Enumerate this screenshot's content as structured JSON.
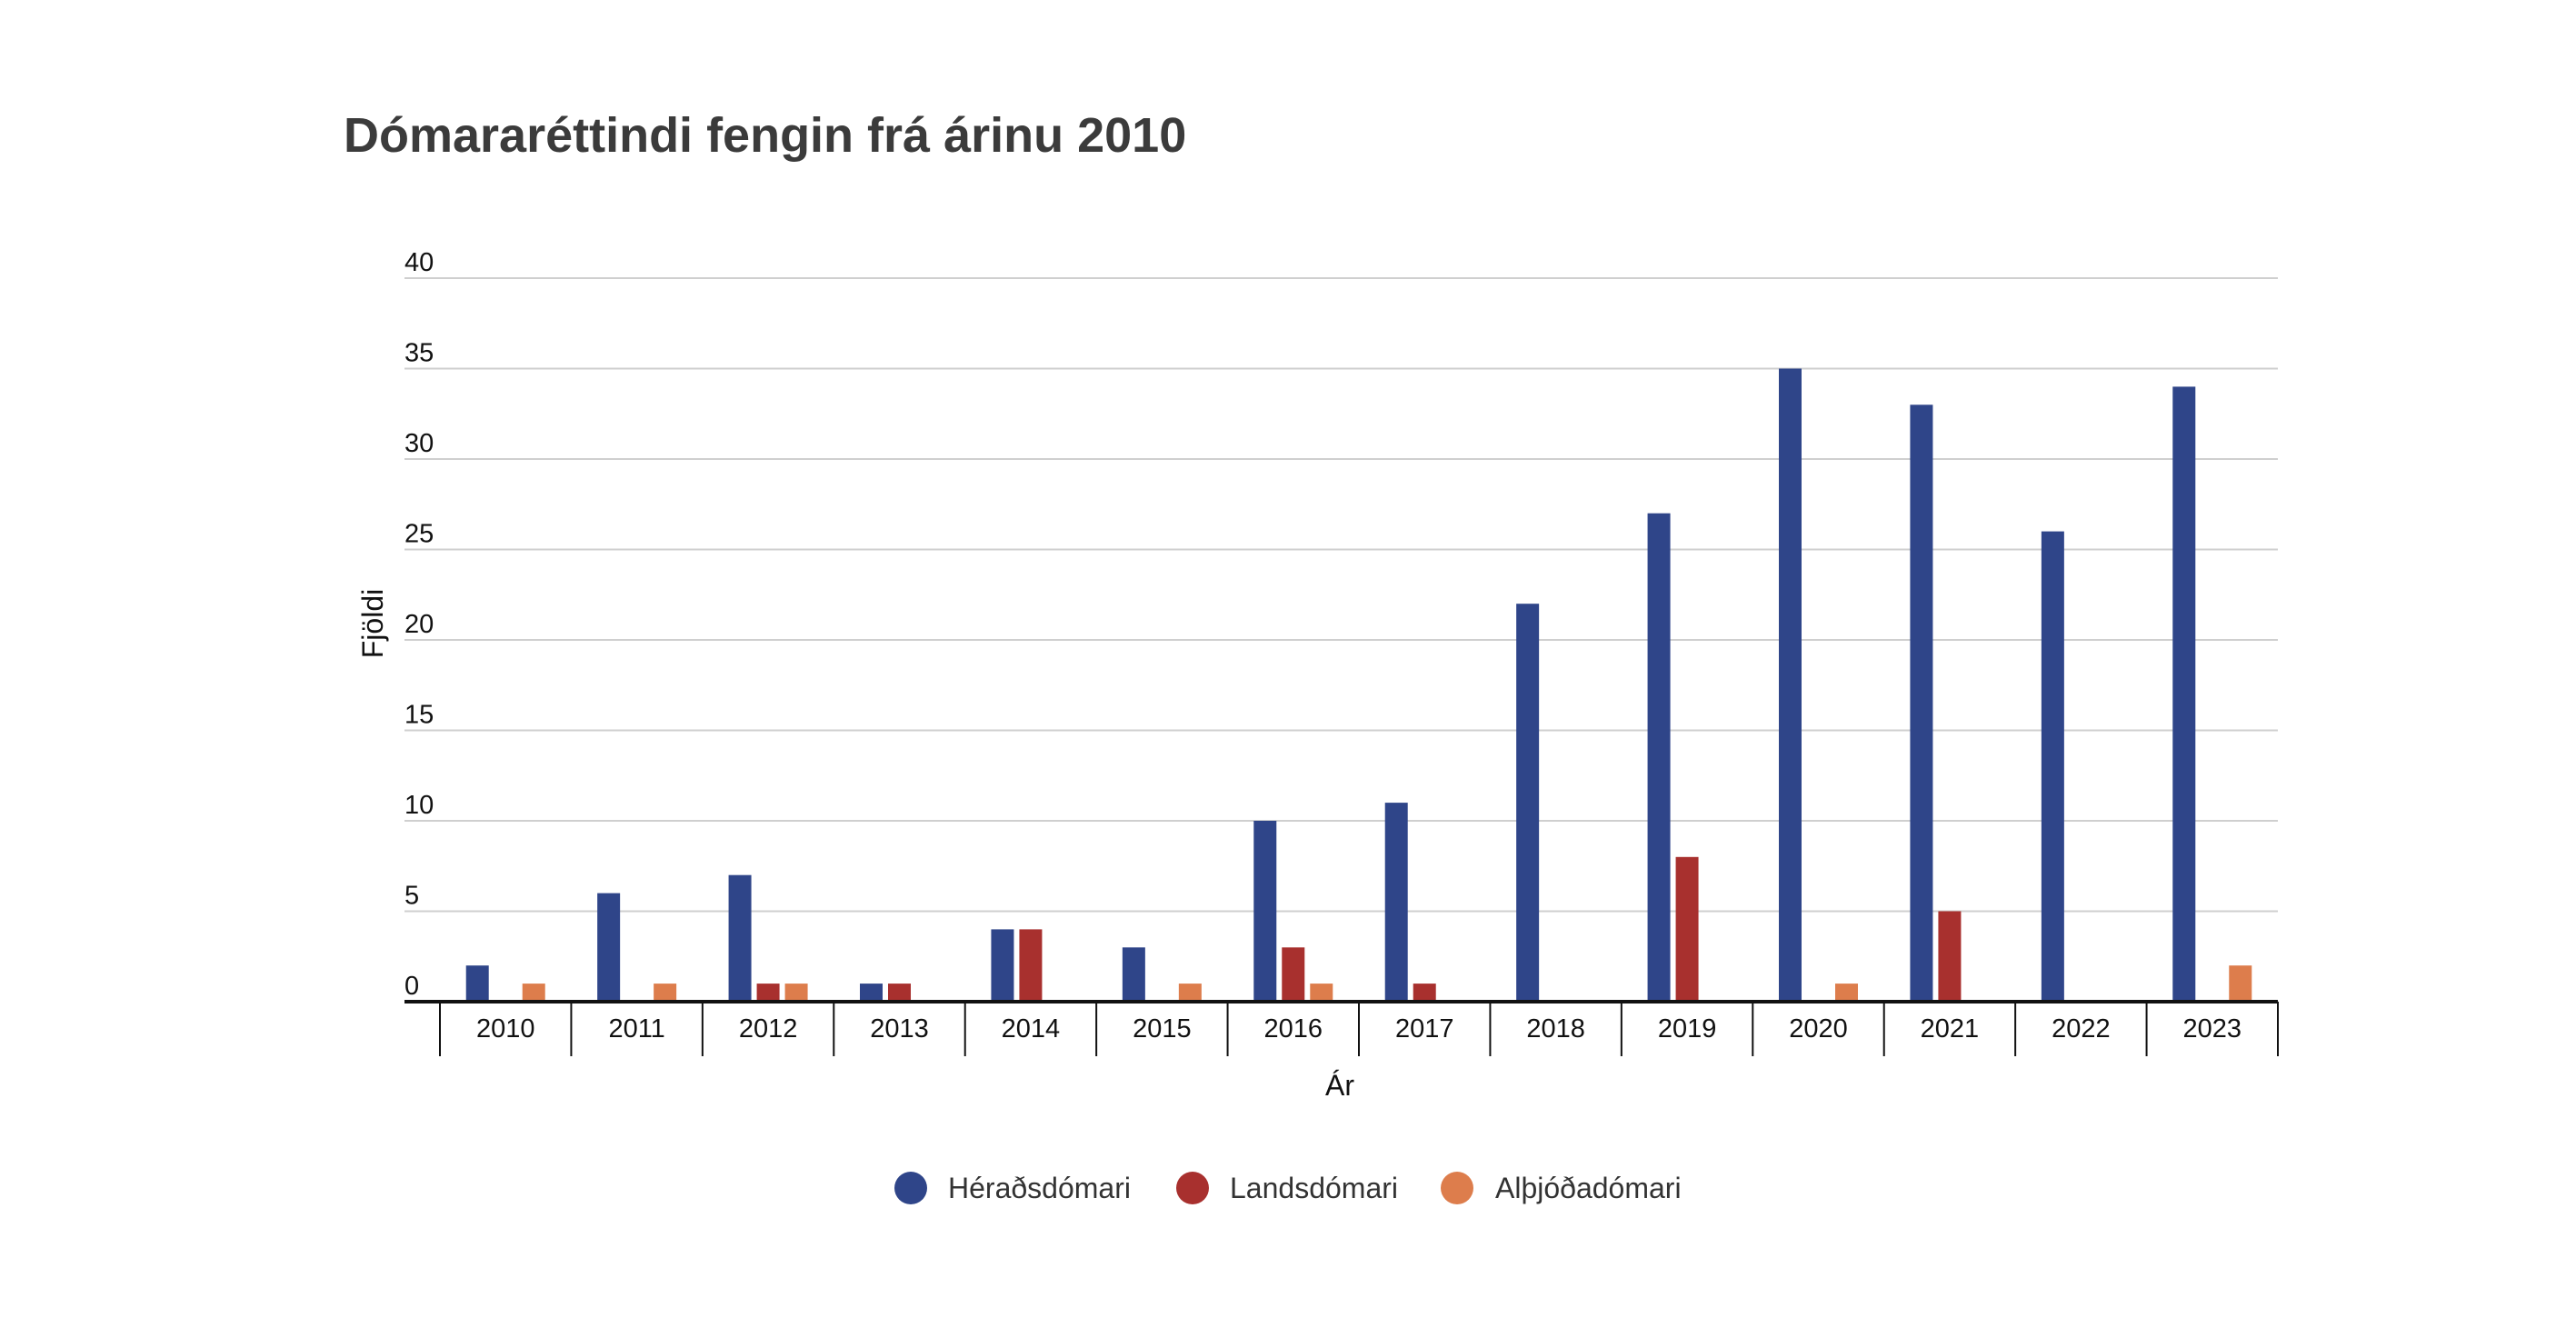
{
  "chart_data": {
    "type": "bar",
    "title": "Dómararéttindi fengin frá árinu 2010",
    "xlabel": "Ár",
    "ylabel": "Fjöldi",
    "ylim": [
      0,
      40
    ],
    "yticks": [
      "0",
      "5",
      "10",
      "15",
      "20",
      "25",
      "30",
      "35",
      "40"
    ],
    "grid": true,
    "legend_position": "bottom",
    "categories": [
      "2010",
      "2011",
      "2012",
      "2013",
      "2014",
      "2015",
      "2016",
      "2017",
      "2018",
      "2019",
      "2020",
      "2021",
      "2022",
      "2023"
    ],
    "series": [
      {
        "name": "Héraðsdómari",
        "color": "#2f4589",
        "values": [
          2,
          6,
          7,
          1,
          4,
          3,
          10,
          11,
          22,
          27,
          35,
          33,
          26,
          34
        ]
      },
      {
        "name": "Landsdómari",
        "color": "#a8302e",
        "values": [
          0,
          0,
          1,
          1,
          4,
          0,
          3,
          1,
          0,
          8,
          0,
          5,
          0,
          0
        ]
      },
      {
        "name": "Alþjóðadómari",
        "color": "#dd7d4c",
        "values": [
          1,
          1,
          1,
          0,
          0,
          1,
          1,
          0,
          0,
          0,
          1,
          0,
          0,
          2
        ]
      }
    ]
  }
}
